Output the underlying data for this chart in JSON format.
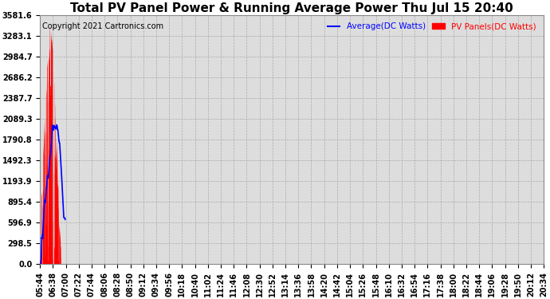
{
  "title": "Total PV Panel Power & Running Average Power Thu Jul 15 20:40",
  "copyright": "Copyright 2021 Cartronics.com",
  "legend_avg": "Average(DC Watts)",
  "legend_pv": "PV Panels(DC Watts)",
  "legend_avg_color": "blue",
  "legend_pv_color": "red",
  "ymin": 0.0,
  "ymax": 3581.6,
  "yticks": [
    0.0,
    298.5,
    596.9,
    895.4,
    1193.9,
    1492.3,
    1790.8,
    2089.3,
    2387.7,
    2686.2,
    2984.7,
    3283.1,
    3581.6
  ],
  "bg_color": "#ffffff",
  "plot_bg_color": "#dddddd",
  "grid_color": "#aaaaaa",
  "xtick_labels": [
    "05:44",
    "06:38",
    "07:00",
    "07:22",
    "07:44",
    "08:06",
    "08:28",
    "08:50",
    "09:12",
    "09:34",
    "09:56",
    "10:18",
    "10:40",
    "11:02",
    "11:24",
    "11:46",
    "12:08",
    "12:30",
    "12:52",
    "13:14",
    "13:36",
    "13:58",
    "14:20",
    "14:42",
    "15:04",
    "15:26",
    "15:48",
    "16:10",
    "16:32",
    "16:54",
    "17:16",
    "17:38",
    "18:00",
    "18:22",
    "18:44",
    "19:06",
    "19:28",
    "19:50",
    "20:12",
    "20:34"
  ],
  "n_ticks": 40,
  "title_fontsize": 11,
  "tick_fontsize": 7,
  "copyright_fontsize": 7
}
